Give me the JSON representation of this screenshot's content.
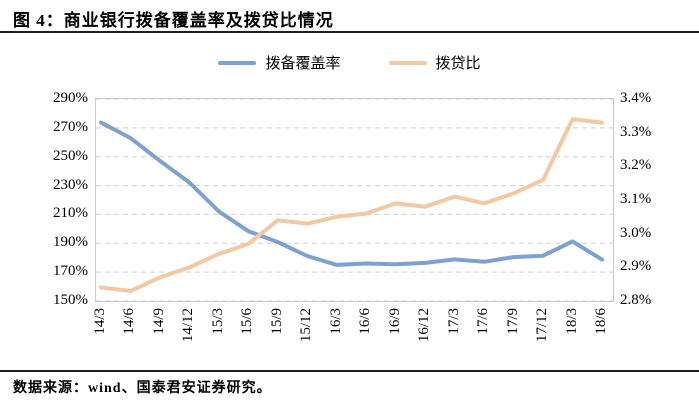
{
  "title": "图 4：商业银行拨备覆盖率及拨贷比情况",
  "footer": {
    "source": "数据来源：wind、国泰君安证券研究。"
  },
  "legend": [
    {
      "label": "拨备覆盖率",
      "color": "#7ca2d3"
    },
    {
      "label": "拨贷比",
      "color": "#f3c8a2"
    }
  ],
  "colors": {
    "coverage_line": "#7ca2d3",
    "loan_ratio_line": "#f3c8a2",
    "gridline": "#d0d0d0",
    "plot_border": "#c9c9c9",
    "rule": "#1f1f1f",
    "text": "#000000"
  },
  "chart_data": {
    "type": "line",
    "title": "商业银行拨备覆盖率及拨贷比情况",
    "categories": [
      "14/3",
      "14/6",
      "14/9",
      "14/12",
      "15/3",
      "15/6",
      "15/9",
      "15/12",
      "16/3",
      "16/6",
      "16/9",
      "16/12",
      "17/3",
      "17/6",
      "17/9",
      "17/12",
      "18/3",
      "18/6"
    ],
    "series": [
      {
        "name": "拨备覆盖率",
        "axis": "left",
        "color": "#7ca2d3",
        "unit": "%",
        "values": [
          273.7,
          262.9,
          247.2,
          232.1,
          212.0,
          198.4,
          190.8,
          181.2,
          175.0,
          176.0,
          175.5,
          176.4,
          178.8,
          177.2,
          180.4,
          181.4,
          191.3,
          178.7
        ]
      },
      {
        "name": "拨贷比",
        "axis": "right",
        "color": "#f3c8a2",
        "unit": "%",
        "values": [
          2.84,
          2.83,
          2.87,
          2.9,
          2.94,
          2.97,
          3.04,
          3.03,
          3.05,
          3.06,
          3.09,
          3.08,
          3.11,
          3.09,
          3.12,
          3.16,
          3.34,
          3.33
        ]
      }
    ],
    "left_axis": {
      "ticks": [
        "290%",
        "270%",
        "250%",
        "230%",
        "210%",
        "190%",
        "170%",
        "150%"
      ],
      "min": 150,
      "max": 290
    },
    "right_axis": {
      "ticks": [
        "3.4%",
        "3.3%",
        "3.2%",
        "3.1%",
        "3.0%",
        "2.9%",
        "2.8%"
      ],
      "min": 2.8,
      "max": 3.4
    },
    "grid": "horizontal dashed",
    "legend_position": "top-center"
  }
}
